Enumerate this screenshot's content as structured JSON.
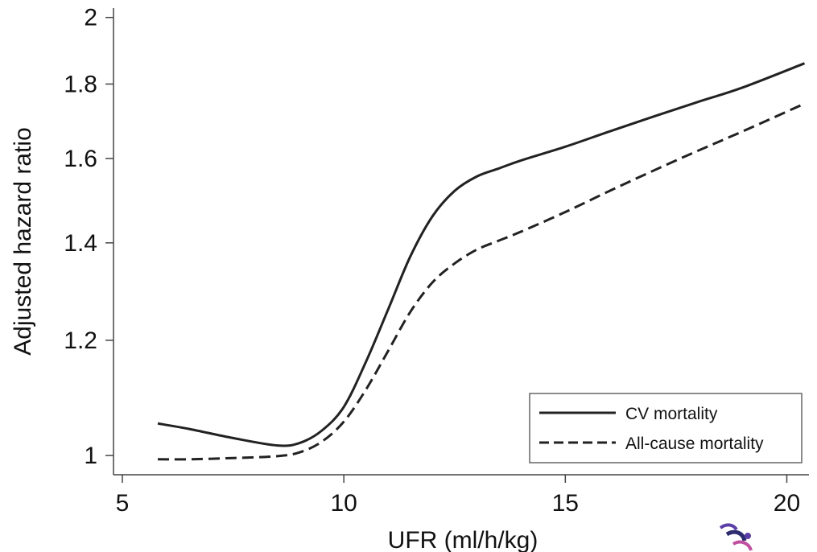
{
  "chart_data": {
    "type": "line",
    "xlabel": "UFR (ml/h/kg)",
    "ylabel": "Adjusted hazard ratio",
    "x_ticks": [
      5,
      10,
      15,
      20
    ],
    "y_ticks": [
      1,
      1.2,
      1.4,
      1.6,
      1.8,
      2
    ],
    "y_tick_labels": [
      "1",
      "1.2",
      "1.4",
      "1.6",
      "1.8",
      "2"
    ],
    "x_tick_labels": [
      "5",
      "10",
      "15",
      "20"
    ],
    "xlim": [
      4.8,
      20.5
    ],
    "ylim": [
      0.97,
      2.03
    ],
    "y_scale": "log",
    "grid": false,
    "legend_position": "bottom-right",
    "series": [
      {
        "name": "CV mortality",
        "style": "solid",
        "color": "#222222",
        "x": [
          5.8,
          6.5,
          7.5,
          8.5,
          9.0,
          9.5,
          10.0,
          10.5,
          11.0,
          11.5,
          12.0,
          12.5,
          13.0,
          13.5,
          14.0,
          15.0,
          16.0,
          17.0,
          18.0,
          19.0,
          20.4
        ],
        "y": [
          1.052,
          1.043,
          1.028,
          1.016,
          1.02,
          1.04,
          1.08,
          1.16,
          1.26,
          1.37,
          1.46,
          1.52,
          1.555,
          1.575,
          1.595,
          1.63,
          1.67,
          1.71,
          1.75,
          1.79,
          1.86
        ]
      },
      {
        "name": "All-cause mortality",
        "style": "dashed",
        "color": "#222222",
        "x": [
          5.8,
          6.5,
          7.5,
          8.5,
          9.0,
          9.5,
          10.0,
          10.5,
          11.0,
          11.5,
          12.0,
          12.5,
          13.0,
          13.5,
          14.0,
          15.0,
          16.0,
          17.0,
          18.0,
          19.0,
          20.4
        ],
        "y": [
          0.994,
          0.994,
          0.996,
          0.999,
          1.005,
          1.022,
          1.055,
          1.11,
          1.18,
          1.255,
          1.315,
          1.355,
          1.385,
          1.405,
          1.425,
          1.47,
          1.52,
          1.57,
          1.62,
          1.67,
          1.745
        ]
      }
    ]
  },
  "watermark": {
    "icon": "decorative-swirl-logo",
    "colors": [
      "#5b3ea6",
      "#2c2c6e",
      "#c04fa0"
    ]
  }
}
